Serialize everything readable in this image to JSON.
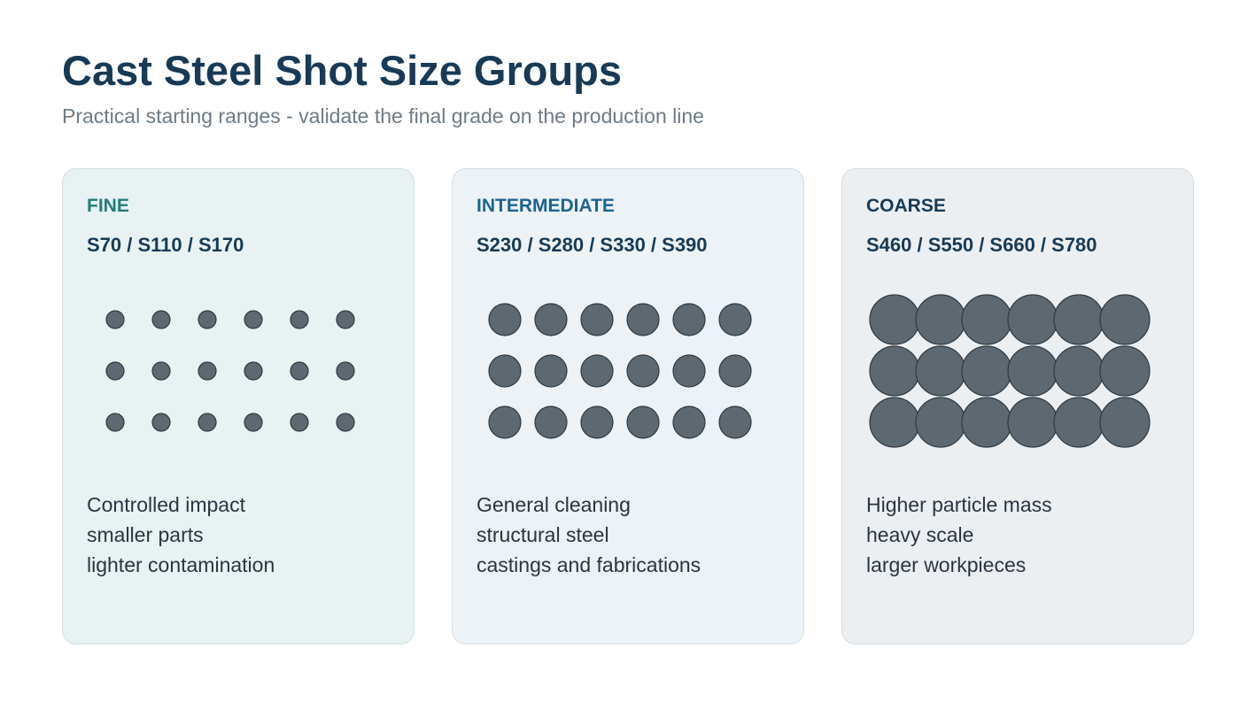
{
  "header": {
    "title": "Cast Steel Shot Size Groups",
    "subtitle": "Practical starting ranges - validate the final grade on the production line"
  },
  "colors": {
    "title": "#173a56",
    "subtitle": "#6e7a84",
    "shot_fill": "#5d6870",
    "shot_stroke": "#2f3a42",
    "card_border": "#d3dde2"
  },
  "groups": [
    {
      "label": "FINE",
      "label_color": "#227e7a",
      "background": "#e8f2f2",
      "grades": "S70 / S110 / S170",
      "relative_size": "small",
      "shot_grid": {
        "rows": 3,
        "cols": 6
      },
      "lines": [
        "Controlled impact",
        "smaller parts",
        "lighter contamination"
      ]
    },
    {
      "label": "INTERMEDIATE",
      "label_color": "#1d6490",
      "background": "#ecf2f6",
      "grades": "S230 / S280 / S330 / S390",
      "relative_size": "medium",
      "shot_grid": {
        "rows": 3,
        "cols": 6
      },
      "lines": [
        "General cleaning",
        "structural steel",
        "castings and fabrications"
      ]
    },
    {
      "label": "COARSE",
      "label_color": "#173a56",
      "background": "#eceff2",
      "grades": "S460 / S550 / S660 / S780",
      "relative_size": "large",
      "shot_grid": {
        "rows": 3,
        "cols": 6
      },
      "lines": [
        "Higher particle mass",
        "heavy scale",
        "larger workpieces"
      ]
    }
  ]
}
